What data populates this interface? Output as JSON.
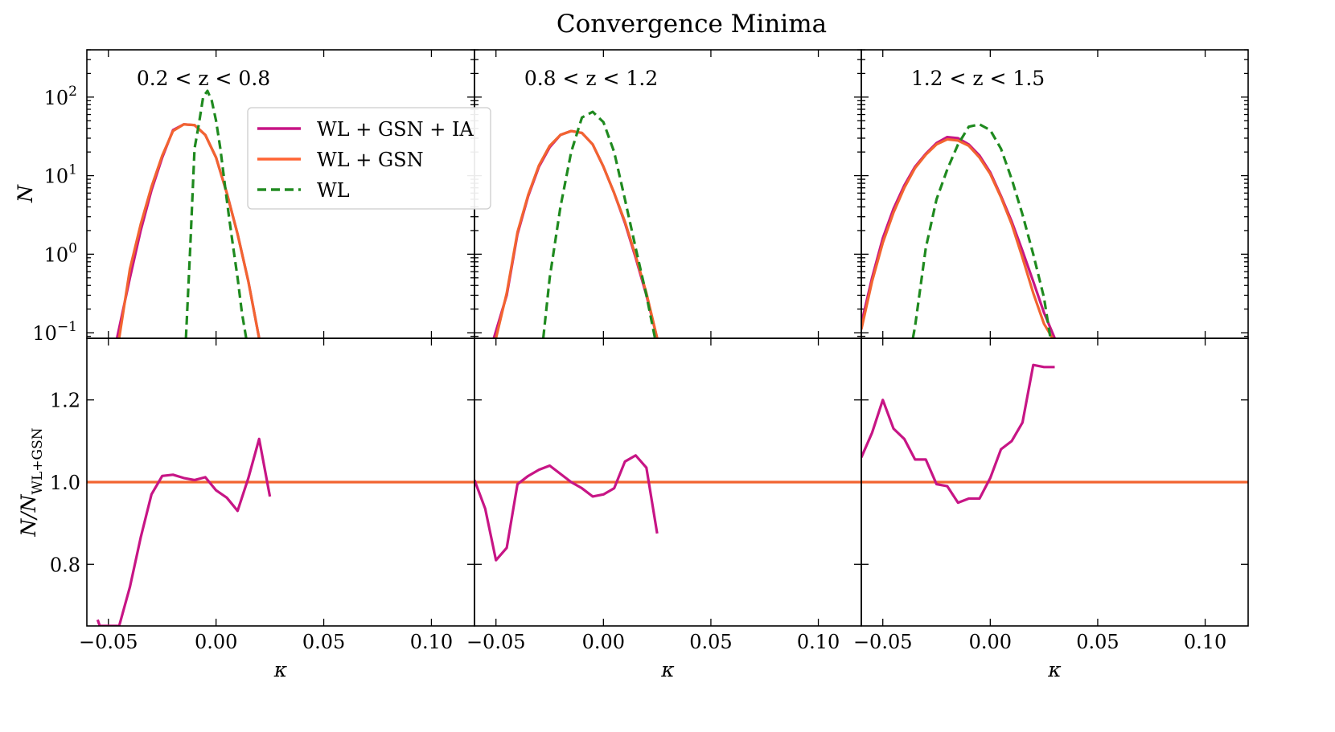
{
  "chart_data": {
    "type": "line",
    "title": "Convergence Minima",
    "xlabel": "κ",
    "xlim": [
      -0.06,
      0.12
    ],
    "xticks": [
      -0.05,
      0.0,
      0.05,
      0.1
    ],
    "xtick_labels": [
      "−0.05",
      "0.00",
      "0.05",
      "0.10"
    ],
    "top_row": {
      "ylabel": "N",
      "yscale": "log",
      "ylim": [
        0.085,
        400
      ],
      "yticks": [
        {
          "value": 0.1,
          "base": "10",
          "exp": "−1"
        },
        {
          "value": 1,
          "base": "10",
          "exp": "0"
        },
        {
          "value": 10,
          "base": "10",
          "exp": "1"
        },
        {
          "value": 100,
          "base": "10",
          "exp": "2"
        }
      ]
    },
    "bottom_row": {
      "ylabel_main": "N/N",
      "ylabel_sub": "WL+GSN",
      "ylim": [
        0.65,
        1.35
      ],
      "yticks": [
        0.8,
        1.0,
        1.2
      ],
      "ytick_labels": [
        "0.8",
        "1.0",
        "1.2"
      ]
    },
    "legend": {
      "placement": "panel-1 top-right",
      "entries": [
        {
          "label": "WL + GSN + IA",
          "color": "#c71585",
          "dash": "solid"
        },
        {
          "label": "WL + GSN",
          "color": "#ff6433",
          "dash": "solid"
        },
        {
          "label": "WL",
          "color": "#228b22",
          "dash": "dashed"
        }
      ]
    },
    "colors": {
      "ia": "#c71585",
      "gsn": "#f26430",
      "wl": "#1f8a1f"
    },
    "panels": [
      {
        "label": "0.2 < z < 0.8",
        "ia": {
          "x": [
            -0.046,
            -0.04,
            -0.035,
            -0.03,
            -0.025,
            -0.02,
            -0.015,
            -0.01,
            -0.005,
            0.0,
            0.005,
            0.01,
            0.015,
            0.02
          ],
          "y": [
            0.085,
            0.5,
            2.0,
            6.5,
            17.0,
            38.0,
            45.0,
            44.0,
            33.0,
            17.0,
            6.0,
            1.8,
            0.45,
            0.085
          ]
        },
        "gsn": {
          "x": [
            -0.045,
            -0.04,
            -0.035,
            -0.03,
            -0.025,
            -0.02,
            -0.015,
            -0.01,
            -0.005,
            0.0,
            0.005,
            0.01,
            0.015,
            0.02
          ],
          "y": [
            0.085,
            0.65,
            2.4,
            7.2,
            18.0,
            37.0,
            45.0,
            44.0,
            33.0,
            17.0,
            6.0,
            1.8,
            0.45,
            0.085
          ]
        },
        "wl": {
          "x": [
            -0.014,
            -0.012,
            -0.01,
            -0.008,
            -0.006,
            -0.004,
            -0.002,
            0.0,
            0.002,
            0.004,
            0.006,
            0.008,
            0.01,
            0.012,
            0.014
          ],
          "y": [
            0.085,
            1.2,
            22.0,
            45.0,
            100.0,
            120.0,
            90.0,
            50.0,
            22.0,
            8.0,
            3.0,
            1.2,
            0.5,
            0.18,
            0.085
          ]
        },
        "ratio_ia": {
          "x": [
            -0.055,
            -0.054,
            -0.045,
            -0.04,
            -0.035,
            -0.03,
            -0.025,
            -0.02,
            -0.015,
            -0.01,
            -0.005,
            0.0,
            0.005,
            0.01,
            0.015,
            0.02,
            0.025
          ],
          "y": [
            0.665,
            0.65,
            0.65,
            0.745,
            0.865,
            0.97,
            1.015,
            1.018,
            1.01,
            1.005,
            1.012,
            0.98,
            0.962,
            0.93,
            1.01,
            1.105,
            0.965
          ]
        },
        "ratio_gsn": {
          "x": [
            -0.06,
            0.12
          ],
          "y": [
            1.0,
            1.0
          ]
        }
      },
      {
        "label": "0.8 < z < 1.2",
        "ia": {
          "x": [
            -0.051,
            -0.045,
            -0.04,
            -0.035,
            -0.03,
            -0.025,
            -0.02,
            -0.015,
            -0.01,
            -0.005,
            0.0,
            0.005,
            0.01,
            0.015,
            0.02,
            0.025
          ],
          "y": [
            0.085,
            0.3,
            1.8,
            5.5,
            13.0,
            23.0,
            33.0,
            37.0,
            35.0,
            25.0,
            13.0,
            6.0,
            2.5,
            0.9,
            0.3,
            0.085
          ]
        },
        "gsn": {
          "x": [
            -0.05,
            -0.045,
            -0.04,
            -0.035,
            -0.03,
            -0.025,
            -0.02,
            -0.015,
            -0.01,
            -0.005,
            0.0,
            0.005,
            0.01,
            0.015,
            0.02,
            0.025
          ],
          "y": [
            0.085,
            0.32,
            1.9,
            5.7,
            13.5,
            24.0,
            33.0,
            37.0,
            35.0,
            25.0,
            13.0,
            6.0,
            2.6,
            0.95,
            0.32,
            0.085
          ]
        },
        "wl": {
          "x": [
            -0.028,
            -0.025,
            -0.02,
            -0.015,
            -0.01,
            -0.005,
            0.0,
            0.005,
            0.01,
            0.015,
            0.02,
            0.024
          ],
          "y": [
            0.085,
            0.5,
            4.0,
            20.0,
            55.0,
            65.0,
            48.0,
            20.0,
            5.0,
            1.2,
            0.3,
            0.085
          ]
        },
        "ratio_ia": {
          "x": [
            -0.06,
            -0.055,
            -0.05,
            -0.045,
            -0.04,
            -0.035,
            -0.03,
            -0.025,
            -0.02,
            -0.015,
            -0.01,
            -0.005,
            0.0,
            0.005,
            0.01,
            0.015,
            0.02,
            0.025
          ],
          "y": [
            1.005,
            0.935,
            0.81,
            0.84,
            0.995,
            1.015,
            1.03,
            1.04,
            1.02,
            1.0,
            0.985,
            0.965,
            0.97,
            0.985,
            1.05,
            1.065,
            1.035,
            0.875
          ]
        },
        "ratio_gsn": {
          "x": [
            -0.06,
            0.12
          ],
          "y": [
            1.0,
            1.0
          ]
        }
      },
      {
        "label": "1.2 < z < 1.5",
        "ia": {
          "x": [
            -0.06,
            -0.055,
            -0.05,
            -0.045,
            -0.04,
            -0.035,
            -0.03,
            -0.025,
            -0.02,
            -0.015,
            -0.01,
            -0.005,
            0.0,
            0.005,
            0.01,
            0.015,
            0.02,
            0.025,
            0.03
          ],
          "y": [
            0.13,
            0.5,
            1.6,
            3.8,
            7.5,
            13.0,
            19.0,
            26.0,
            31.0,
            30.0,
            25.0,
            18.0,
            11.0,
            5.5,
            2.6,
            1.1,
            0.45,
            0.18,
            0.085
          ]
        },
        "gsn": {
          "x": [
            -0.06,
            -0.055,
            -0.05,
            -0.045,
            -0.04,
            -0.035,
            -0.03,
            -0.025,
            -0.02,
            -0.015,
            -0.01,
            -0.005,
            0.0,
            0.005,
            0.01,
            0.015,
            0.02,
            0.025,
            0.029
          ],
          "y": [
            0.11,
            0.45,
            1.4,
            3.4,
            7.0,
            12.5,
            18.5,
            25.0,
            29.0,
            28.0,
            24.0,
            17.0,
            10.5,
            5.3,
            2.4,
            0.9,
            0.32,
            0.13,
            0.085
          ]
        },
        "wl": {
          "x": [
            -0.036,
            -0.035,
            -0.03,
            -0.025,
            -0.02,
            -0.015,
            -0.01,
            -0.005,
            0.0,
            0.005,
            0.01,
            0.015,
            0.02,
            0.025,
            0.028
          ],
          "y": [
            0.085,
            0.12,
            1.2,
            5.0,
            12.0,
            25.0,
            42.0,
            45.0,
            38.0,
            22.0,
            9.0,
            3.2,
            1.0,
            0.28,
            0.085
          ]
        },
        "ratio_ia": {
          "x": [
            -0.06,
            -0.055,
            -0.05,
            -0.045,
            -0.04,
            -0.035,
            -0.03,
            -0.025,
            -0.02,
            -0.015,
            -0.01,
            -0.005,
            0.0,
            0.005,
            0.01,
            0.015,
            0.02,
            0.025,
            0.03
          ],
          "y": [
            1.06,
            1.12,
            1.2,
            1.13,
            1.105,
            1.055,
            1.055,
            0.995,
            0.99,
            0.95,
            0.96,
            0.96,
            1.01,
            1.08,
            1.1,
            1.145,
            1.285,
            1.28,
            1.28
          ]
        },
        "ratio_gsn": {
          "x": [
            -0.06,
            0.12
          ],
          "y": [
            1.0,
            1.0
          ]
        }
      }
    ]
  }
}
